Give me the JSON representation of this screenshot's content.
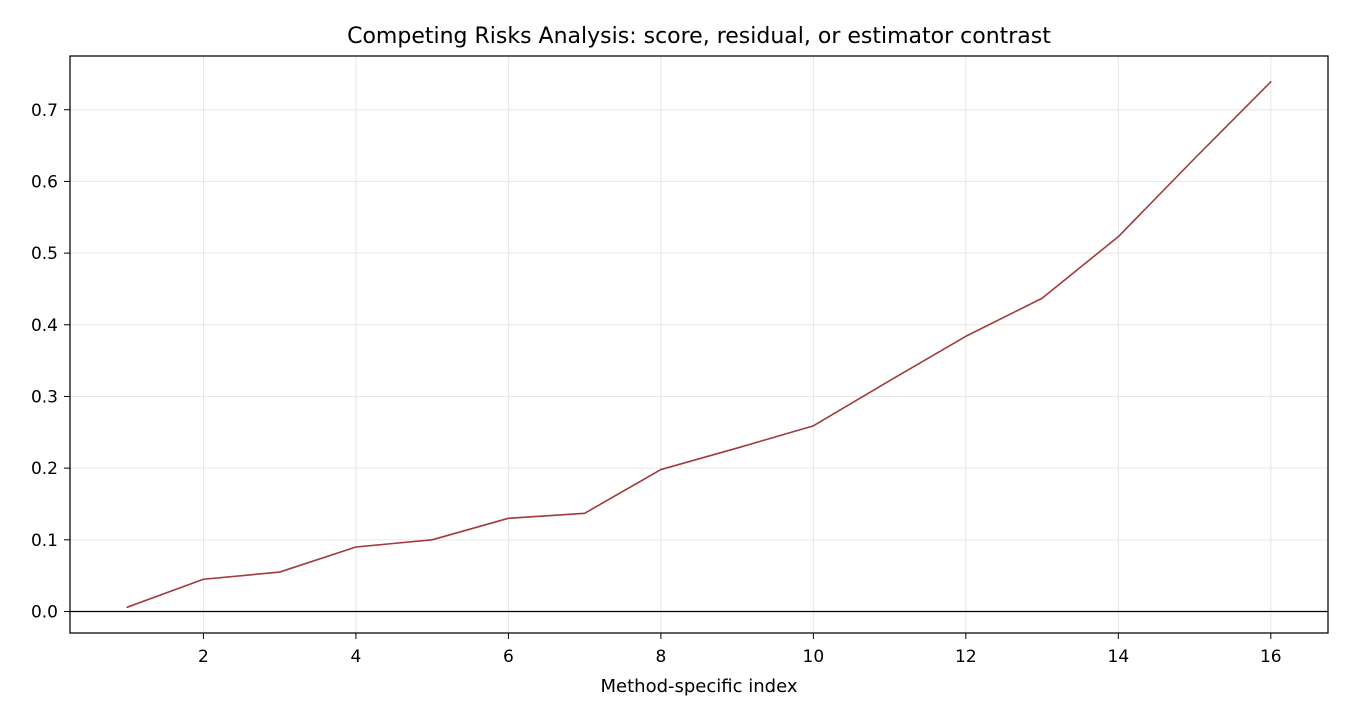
{
  "chart_data": {
    "type": "line",
    "title": "Competing Risks Analysis: score, residual, or estimator contrast",
    "xlabel": "Method-specific index",
    "ylabel": "",
    "xlim": [
      0.25,
      16.75
    ],
    "ylim": [
      -0.03,
      0.775
    ],
    "xticks": [
      2,
      4,
      6,
      8,
      10,
      12,
      14,
      16
    ],
    "xtick_labels": [
      "2",
      "4",
      "6",
      "8",
      "10",
      "12",
      "14",
      "16"
    ],
    "yticks": [
      0.0,
      0.1,
      0.2,
      0.3,
      0.4,
      0.5,
      0.6,
      0.7
    ],
    "ytick_labels": [
      "0.0",
      "0.1",
      "0.2",
      "0.3",
      "0.4",
      "0.5",
      "0.6",
      "0.7"
    ],
    "grid": true,
    "reference_line_y": 0,
    "series": [
      {
        "color": "#a33a3a",
        "x": [
          1,
          2,
          3,
          4,
          5,
          6,
          7,
          8,
          9,
          10,
          11,
          12,
          13,
          14,
          15,
          16
        ],
        "values": [
          0.006,
          0.045,
          0.055,
          0.09,
          0.1,
          0.13,
          0.137,
          0.198,
          0.228,
          0.259,
          0.322,
          0.384,
          0.437,
          0.523,
          0.632,
          0.739
        ]
      }
    ]
  }
}
